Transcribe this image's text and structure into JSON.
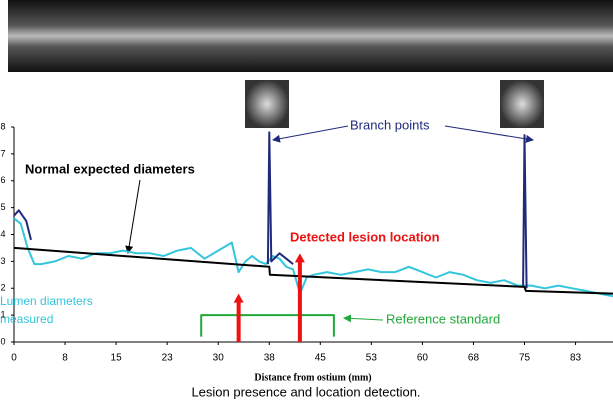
{
  "chart_data": {
    "type": "line",
    "title": "Lesion presence and location detection.",
    "xlabel": "Distance from ostium (mm)",
    "xlim": [
      0,
      88
    ],
    "ylim": [
      0,
      8
    ],
    "xticks": [
      0,
      {
        "value": 7.5,
        "label": "8"
      },
      15,
      {
        "value": 22.5,
        "label": "23"
      },
      30,
      {
        "value": 37.5,
        "label": "38"
      },
      45,
      {
        "value": 52.5,
        "label": "53"
      },
      60,
      {
        "value": 67.5,
        "label": "68"
      },
      75,
      {
        "value": 82.5,
        "label": "83"
      }
    ],
    "yticks": [
      0,
      1,
      2,
      3,
      4,
      5,
      6,
      7,
      8
    ],
    "annotations": [
      "Branch points",
      "Normal expected diameters",
      "Detected lesion location",
      "Lumen diameters",
      "measured",
      "Reference standard"
    ],
    "series": [
      {
        "color": "#33c6dc",
        "x": [
          0,
          1,
          2,
          3,
          4,
          6,
          8,
          10,
          12,
          14,
          16,
          18,
          20,
          22,
          24,
          26,
          28,
          30,
          32,
          33,
          34,
          35,
          36,
          37,
          38,
          39,
          40,
          41,
          42,
          43,
          44,
          46,
          48,
          50,
          52,
          54,
          56,
          58,
          60,
          62,
          64,
          66,
          68,
          70,
          72,
          74,
          76,
          78,
          80,
          82,
          84,
          86,
          88
        ],
        "values": [
          4.6,
          4.4,
          3.5,
          2.9,
          2.9,
          3.0,
          3.2,
          3.1,
          3.3,
          3.3,
          3.4,
          3.3,
          3.3,
          3.2,
          3.4,
          3.5,
          3.1,
          3.4,
          3.7,
          2.6,
          3.0,
          3.2,
          3.0,
          2.9,
          3.2,
          3.1,
          2.8,
          2.7,
          1.8,
          2.4,
          2.5,
          2.6,
          2.5,
          2.6,
          2.7,
          2.6,
          2.6,
          2.8,
          2.6,
          2.4,
          2.6,
          2.5,
          2.3,
          2.2,
          2.3,
          2.1,
          2.1,
          2.0,
          2.1,
          2.0,
          1.9,
          1.8,
          1.7
        ]
      },
      {
        "color": "#1f2a7a",
        "x": [
          0,
          0.7,
          1.8,
          2.5,
          20,
          37.3,
          37.5,
          37.8,
          39,
          40,
          41,
          60,
          74.8,
          75,
          75.3
        ],
        "values": [
          4.7,
          4.9,
          4.5,
          3.8,
          null,
          2.9,
          7.8,
          3.0,
          3.3,
          3.1,
          2.9,
          null,
          2.1,
          7.7,
          2.0
        ]
      },
      {
        "color": "#000000",
        "x": [
          0,
          37.5,
          37.6,
          75,
          75.2,
          88
        ],
        "values": [
          3.5,
          2.8,
          2.5,
          2.05,
          1.9,
          1.8
        ]
      },
      {
        "color": "#21a83a",
        "x": [
          27.5,
          27.5,
          47,
          47
        ],
        "values": [
          0.2,
          1,
          1,
          0.2
        ]
      },
      {
        "type": "arrow",
        "color": "#ee1111",
        "x": [
          33,
          42
        ],
        "values": [
          1.8,
          3.3
        ]
      }
    ]
  }
}
